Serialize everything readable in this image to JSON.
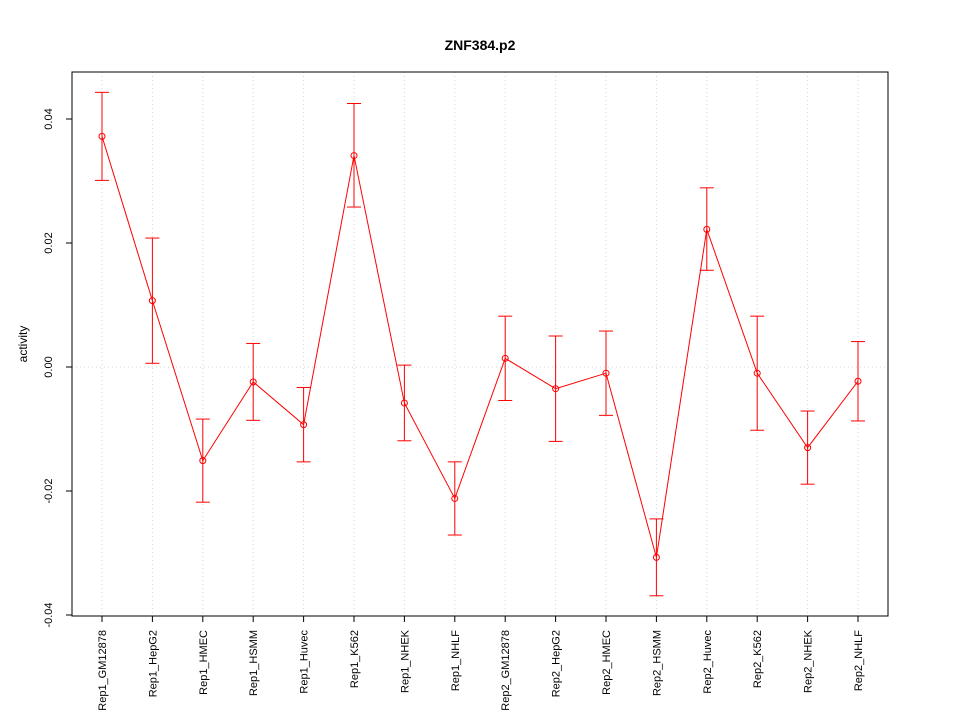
{
  "chart_data": {
    "type": "line",
    "title": "ZNF384.p2",
    "xlabel": "",
    "ylabel": "activity",
    "ylim": [
      -0.04,
      0.045
    ],
    "yticks": [
      -0.04,
      -0.02,
      0.0,
      0.02,
      0.04
    ],
    "ytick_labels": [
      "-0.04",
      "-0.02",
      "0.00",
      "0.02",
      "0.04"
    ],
    "grid": true,
    "color": "#ff0000",
    "categories": [
      "Rep1_GM12878",
      "Rep1_HepG2",
      "Rep1_HMEC",
      "Rep1_HSMM",
      "Rep1_Huvec",
      "Rep1_K562",
      "Rep1_NHEK",
      "Rep1_NHLF",
      "Rep2_GM12878",
      "Rep2_HepG2",
      "Rep2_HMEC",
      "Rep2_HSMM",
      "Rep2_Huvec",
      "Rep2_K562",
      "Rep2_NHEK",
      "Rep2_NHLF"
    ],
    "values": [
      0.0372,
      0.0107,
      -0.0151,
      -0.0024,
      -0.0093,
      0.0341,
      -0.0058,
      -0.0212,
      0.0014,
      -0.0035,
      -0.001,
      -0.0307,
      0.0222,
      -0.001,
      -0.013,
      -0.0023
    ],
    "upper": [
      0.0443,
      0.0208,
      -0.0084,
      0.0038,
      -0.0033,
      0.0425,
      0.0003,
      -0.0153,
      0.0082,
      0.005,
      0.0058,
      -0.0245,
      0.0289,
      0.0082,
      -0.0071,
      0.0041
    ],
    "lower": [
      0.0301,
      0.0006,
      -0.0218,
      -0.0086,
      -0.0153,
      0.0258,
      -0.0119,
      -0.0271,
      -0.0054,
      -0.012,
      -0.0078,
      -0.0369,
      0.0156,
      -0.0102,
      -0.0189,
      -0.0087
    ]
  }
}
